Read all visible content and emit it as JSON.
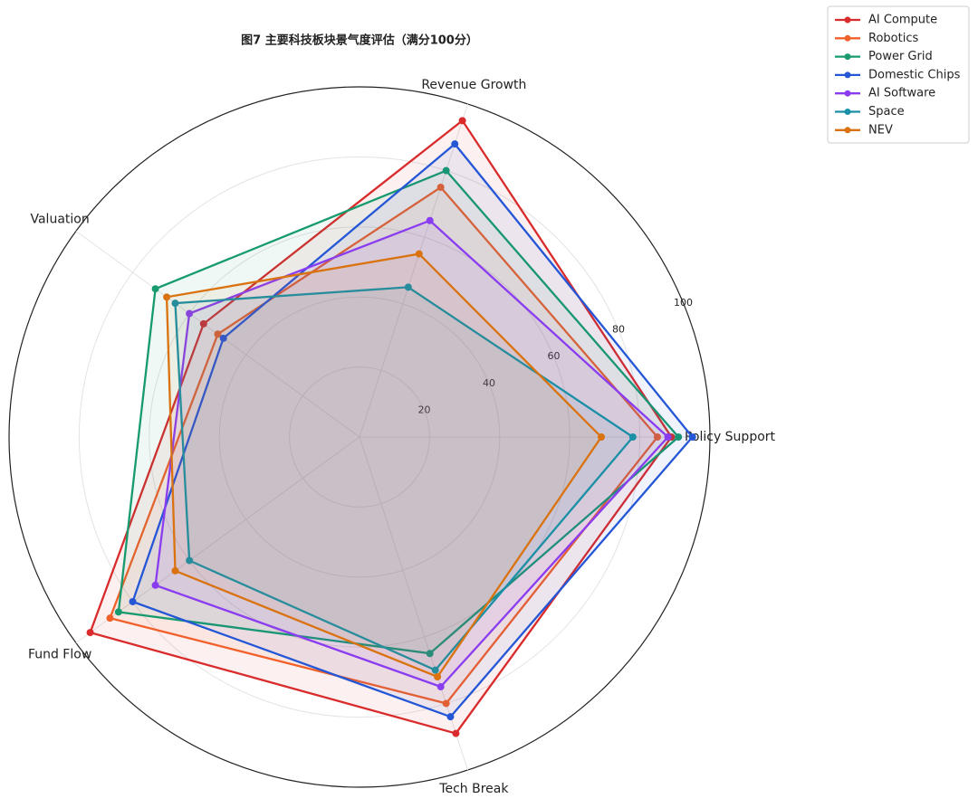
{
  "chart_data": {
    "type": "radar",
    "title": "图7 主要科技板块景气度评估（满分100分）",
    "categories": [
      "Policy Support",
      "Revenue Growth",
      "Valuation",
      "Fund Flow",
      "Tech Break"
    ],
    "ylim": [
      0,
      100
    ],
    "yticks": [
      20,
      40,
      60,
      80,
      100
    ],
    "grid": true,
    "legend": "upper right",
    "series": [
      {
        "name": "AI Compute",
        "color": "#d92b2b",
        "values": [
          89,
          95,
          55,
          95,
          89
        ]
      },
      {
        "name": "Robotics",
        "color": "#f2602a",
        "values": [
          85,
          75,
          50,
          88,
          80
        ]
      },
      {
        "name": "Power Grid",
        "color": "#169a6e",
        "values": [
          91,
          80,
          72,
          85,
          65
        ]
      },
      {
        "name": "Domestic Chips",
        "color": "#2456d6",
        "values": [
          95,
          88,
          48,
          80,
          84
        ]
      },
      {
        "name": "AI Software",
        "color": "#8a3df0",
        "values": [
          88,
          65,
          60,
          72,
          75
        ]
      },
      {
        "name": "Space",
        "color": "#1a8fa6",
        "values": [
          78,
          45,
          65,
          60,
          70
        ]
      },
      {
        "name": "NEV",
        "color": "#d9720f",
        "values": [
          69,
          55,
          68,
          65,
          72
        ]
      }
    ]
  }
}
